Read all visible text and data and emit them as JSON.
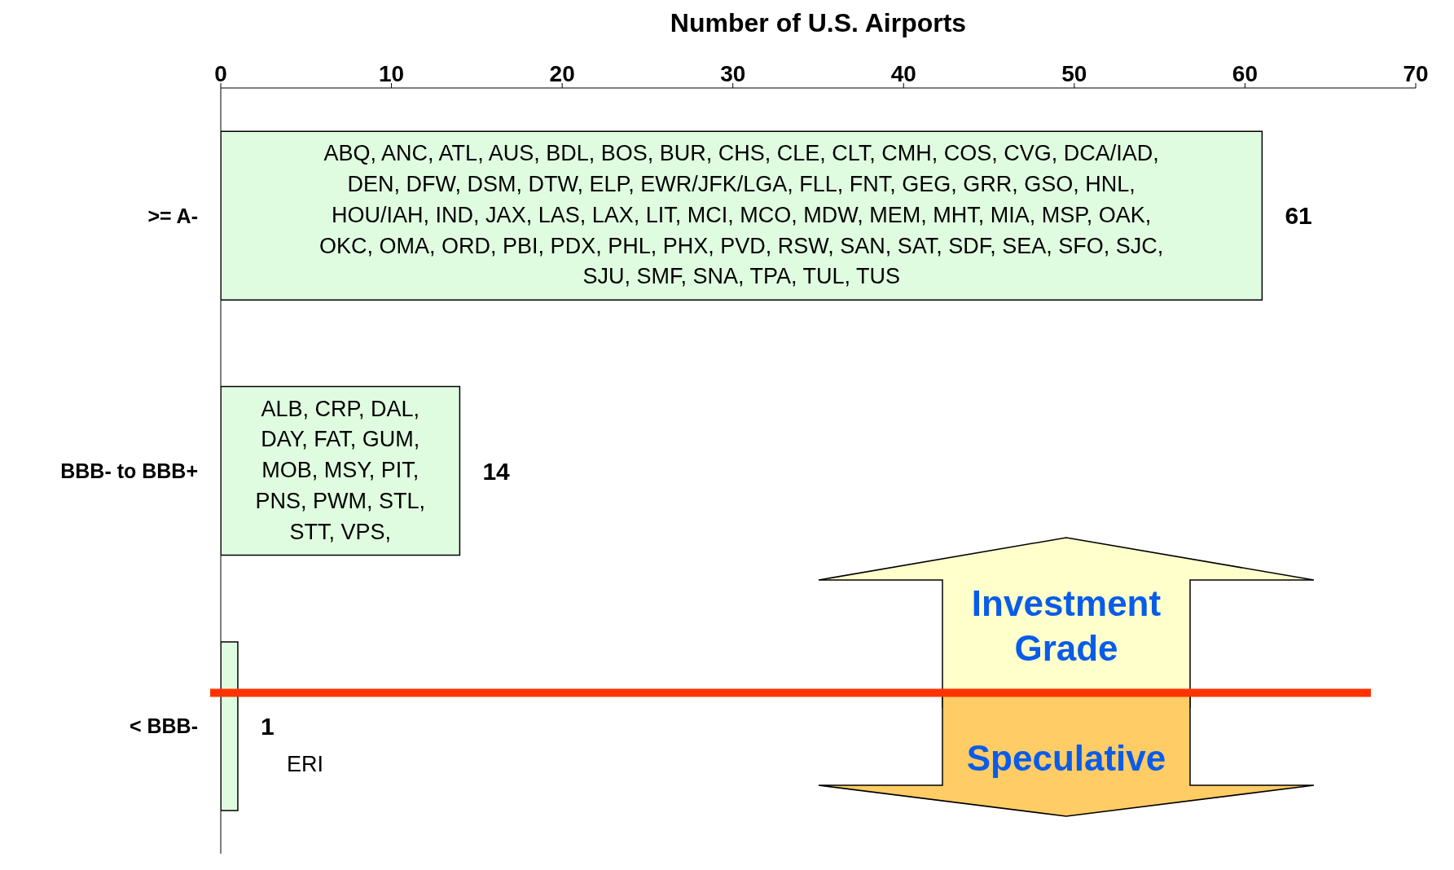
{
  "chart_data": {
    "type": "bar",
    "orientation": "horizontal",
    "xlabel": "Number of U.S. Airports",
    "categories": [
      ">= A-",
      "BBB- to BBB+",
      "< BBB-"
    ],
    "values": [
      61,
      14,
      1
    ],
    "color": "#e0fce0",
    "xlim": [
      0,
      70
    ],
    "xticks": [
      0,
      10,
      20,
      30,
      40,
      50,
      60,
      70
    ],
    "data_labels": true,
    "ref_lines": [
      {
        "axis": "y",
        "value": "< BBB-",
        "color": "#ff3300"
      }
    ],
    "annotations": [
      "ABQ, ANC, ATL, AUS, BDL, BOS, BUR, CHS, CLE, CLT, CMH, COS, CVG, DCA/IAD, DEN, DFW, DSM, DTW, ELP, EWR/JFK/LGA, FLL, FNT, GEG, GRR, GSO, HNL, HOU/IAH, IND, JAX, LAS, LAX, LIT, MCI, MCO, MDW, MEM, MHT, MIA, MSP, OAK, OKC, OMA, ORD, PBI, PDX, PHL, PHX, PVD, RSW, SAN, SAT, SDF, SEA, SFO, SJC, SJU, SMF, SNA, TPA, TUL, TUS",
      "ALB, CRP, DAL, DAY, FAT, GUM, MOB, MSY, PIT, PNS, PWM, STL, STT, VPS,",
      "ERI",
      "Investment Grade",
      "Speculative"
    ]
  }
}
